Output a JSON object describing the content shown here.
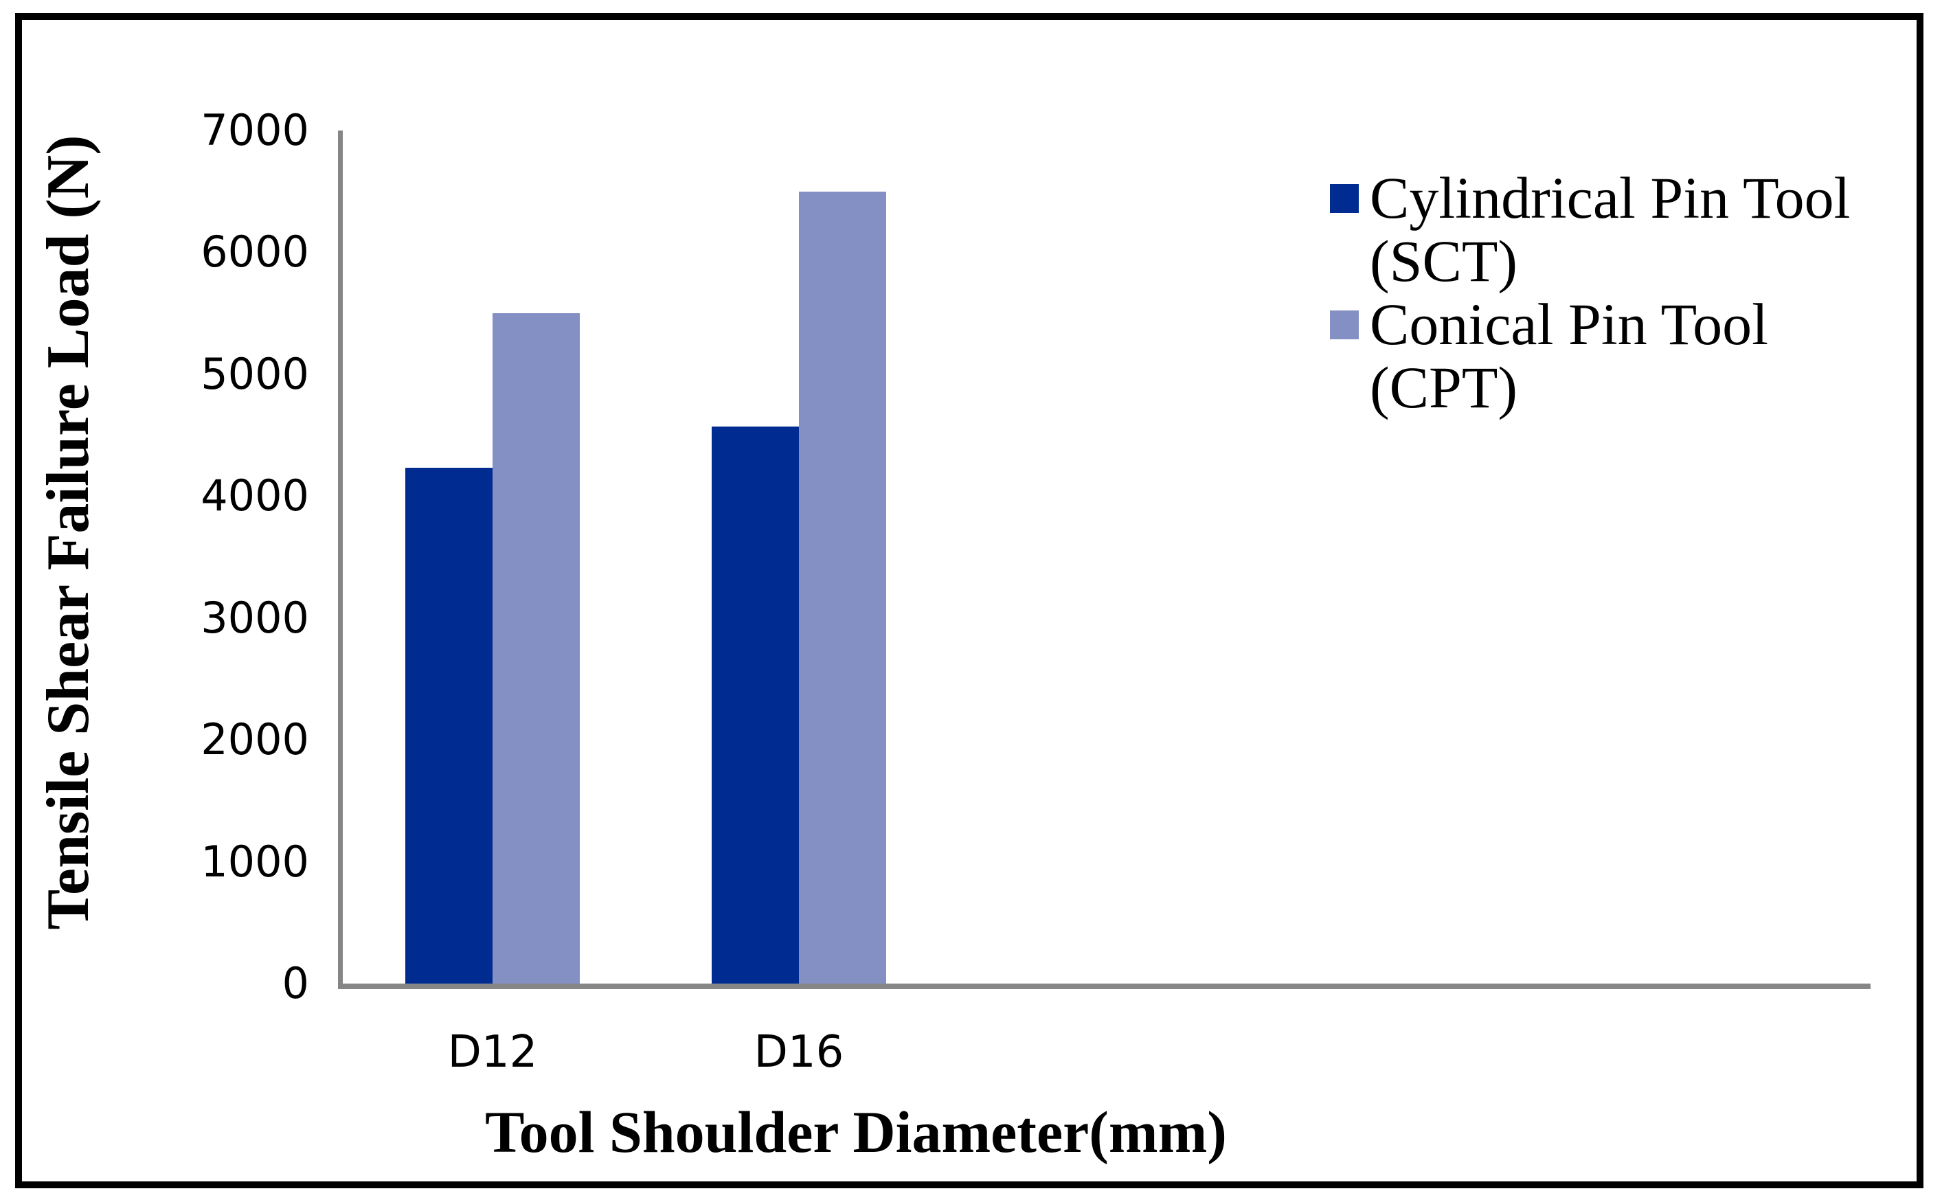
{
  "figure": {
    "background": "#ffffff",
    "border_color": "#000000",
    "axis_color": "#868686"
  },
  "chart_data": {
    "type": "bar",
    "title": "",
    "categories": [
      "D12",
      "D16"
    ],
    "series": [
      {
        "name": "Cylindrical Pin Tool (SCT)",
        "legend_lines": [
          "Cylindrical Pin Tool",
          "(SCT)"
        ],
        "values": [
          4230,
          4570
        ],
        "color": "#002C92"
      },
      {
        "name": "Conical Pin Tool (CPT)",
        "legend_lines": [
          "Conical Pin Tool",
          "(CPT)"
        ],
        "values": [
          5500,
          6500
        ],
        "color": "#8490C3"
      }
    ],
    "xlabel": "Tool Shoulder Diameter(mm)",
    "ylabel": "Tensile Shear Failure Load (N)",
    "ylim": [
      0,
      7000
    ],
    "ytick_step": 1000,
    "yticks": [
      0,
      1000,
      2000,
      3000,
      4000,
      5000,
      6000,
      7000
    ],
    "grid": false,
    "legend_position": "right"
  }
}
